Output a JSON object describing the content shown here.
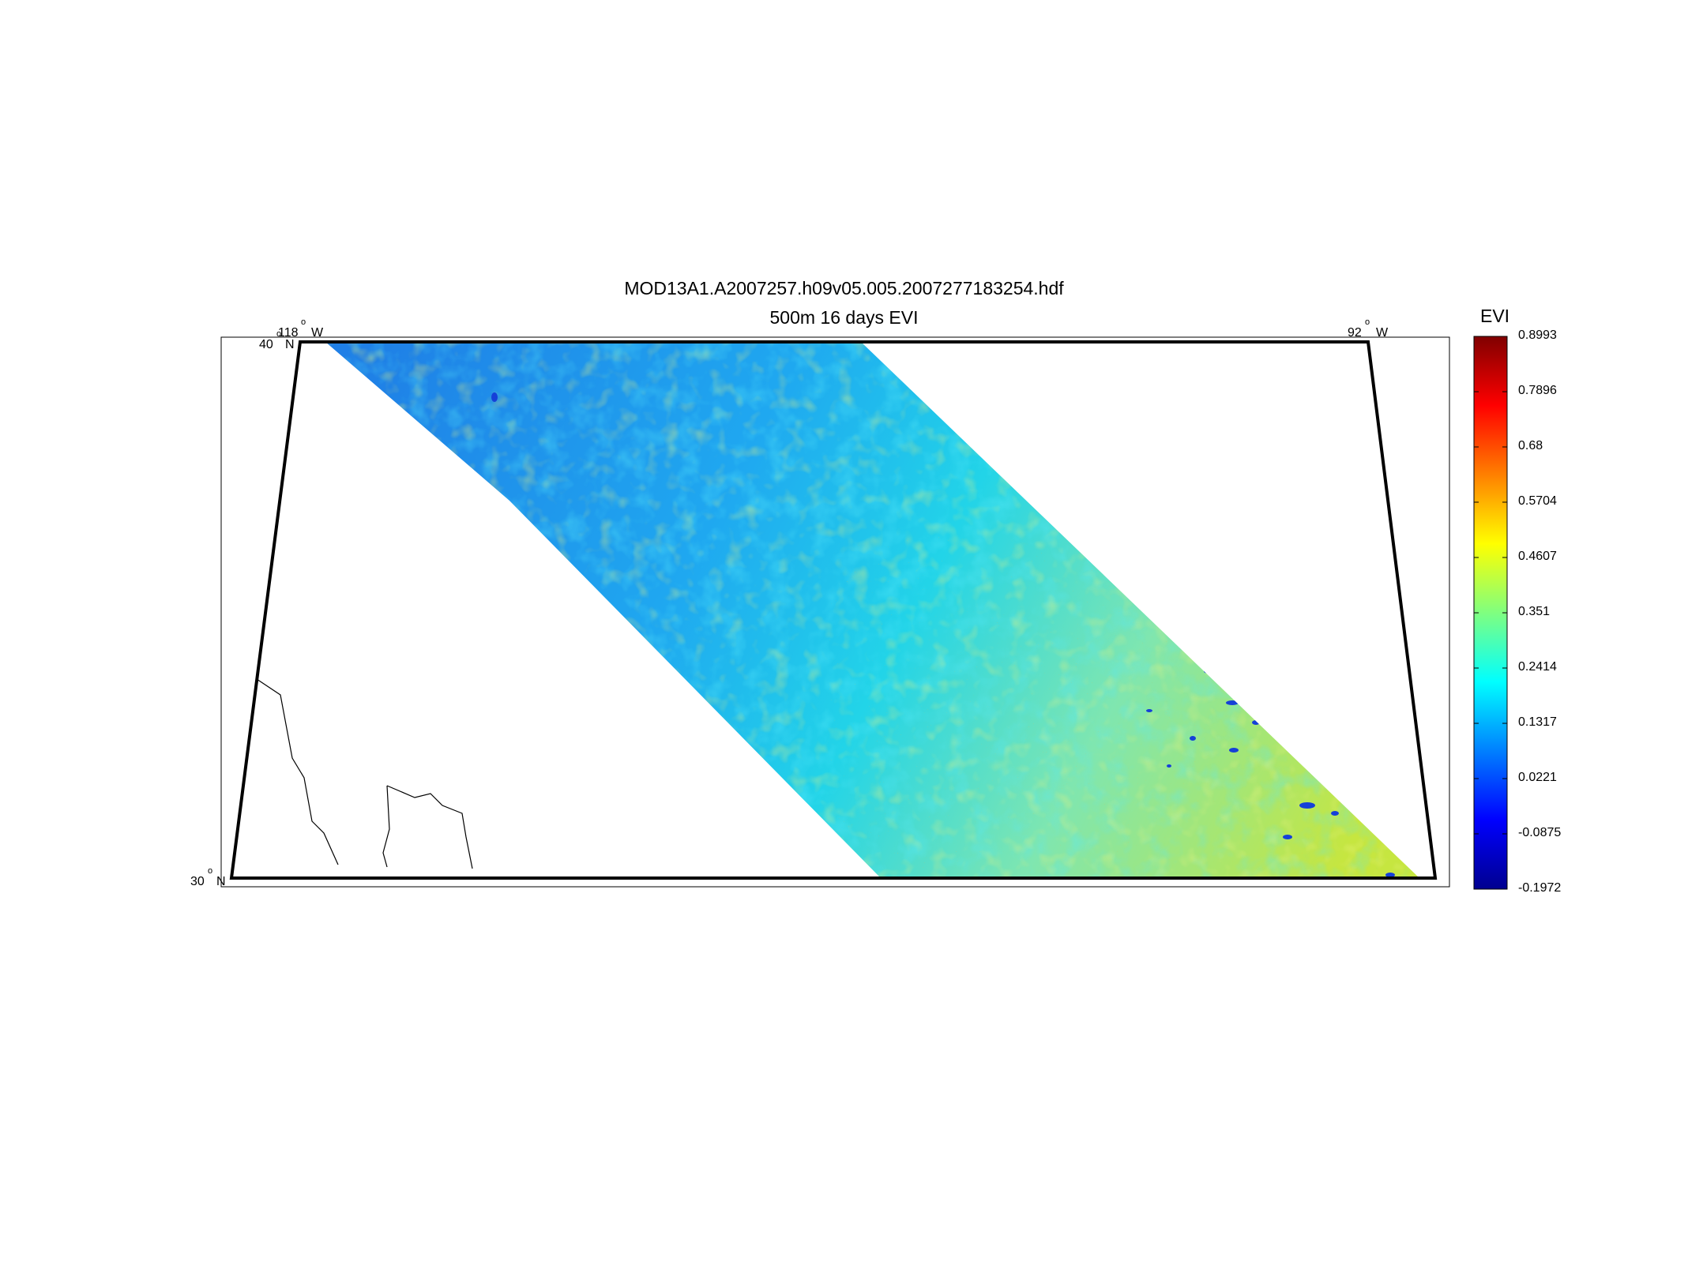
{
  "figure": {
    "title": "MOD13A1.A2007257.h09v05.005.2007277183254.hdf",
    "subtitle": "500m 16 days EVI"
  },
  "map": {
    "lon_labels": [
      {
        "value": "118",
        "hemi": "W"
      },
      {
        "value": "92",
        "hemi": "W"
      }
    ],
    "lat_labels": [
      {
        "value": "40",
        "hemi": "N"
      },
      {
        "value": "30",
        "hemi": "N"
      }
    ],
    "colormap": "jet",
    "swath_colors": {
      "low": "#1f7fe6",
      "mid": "#22d4e8",
      "high": "#c6e640",
      "water": "#1540d8"
    }
  },
  "colorbar": {
    "label": "EVI",
    "min": -0.1972,
    "max": 0.8993,
    "tick_labels": [
      "0.8993",
      "0.7896",
      "0.68",
      "0.5704",
      "0.4607",
      "0.351",
      "0.2414",
      "0.1317",
      "0.0221",
      "-0.0875",
      "-0.1972"
    ]
  },
  "chart_data": {
    "type": "heatmap",
    "title": "MOD13A1.A2007257.h09v05.005.2007277183254.hdf",
    "subtitle": "500m 16 days EVI",
    "colorbar_label": "EVI",
    "value_range": [
      -0.1972,
      0.8993
    ],
    "colorbar_ticks": [
      0.8993,
      0.7896,
      0.68,
      0.5704,
      0.4607,
      0.351,
      0.2414,
      0.1317,
      0.0221,
      -0.0875,
      -0.1972
    ],
    "lon_range_deg": [
      -118,
      -92
    ],
    "lat_range_deg": [
      30,
      40
    ]
  }
}
